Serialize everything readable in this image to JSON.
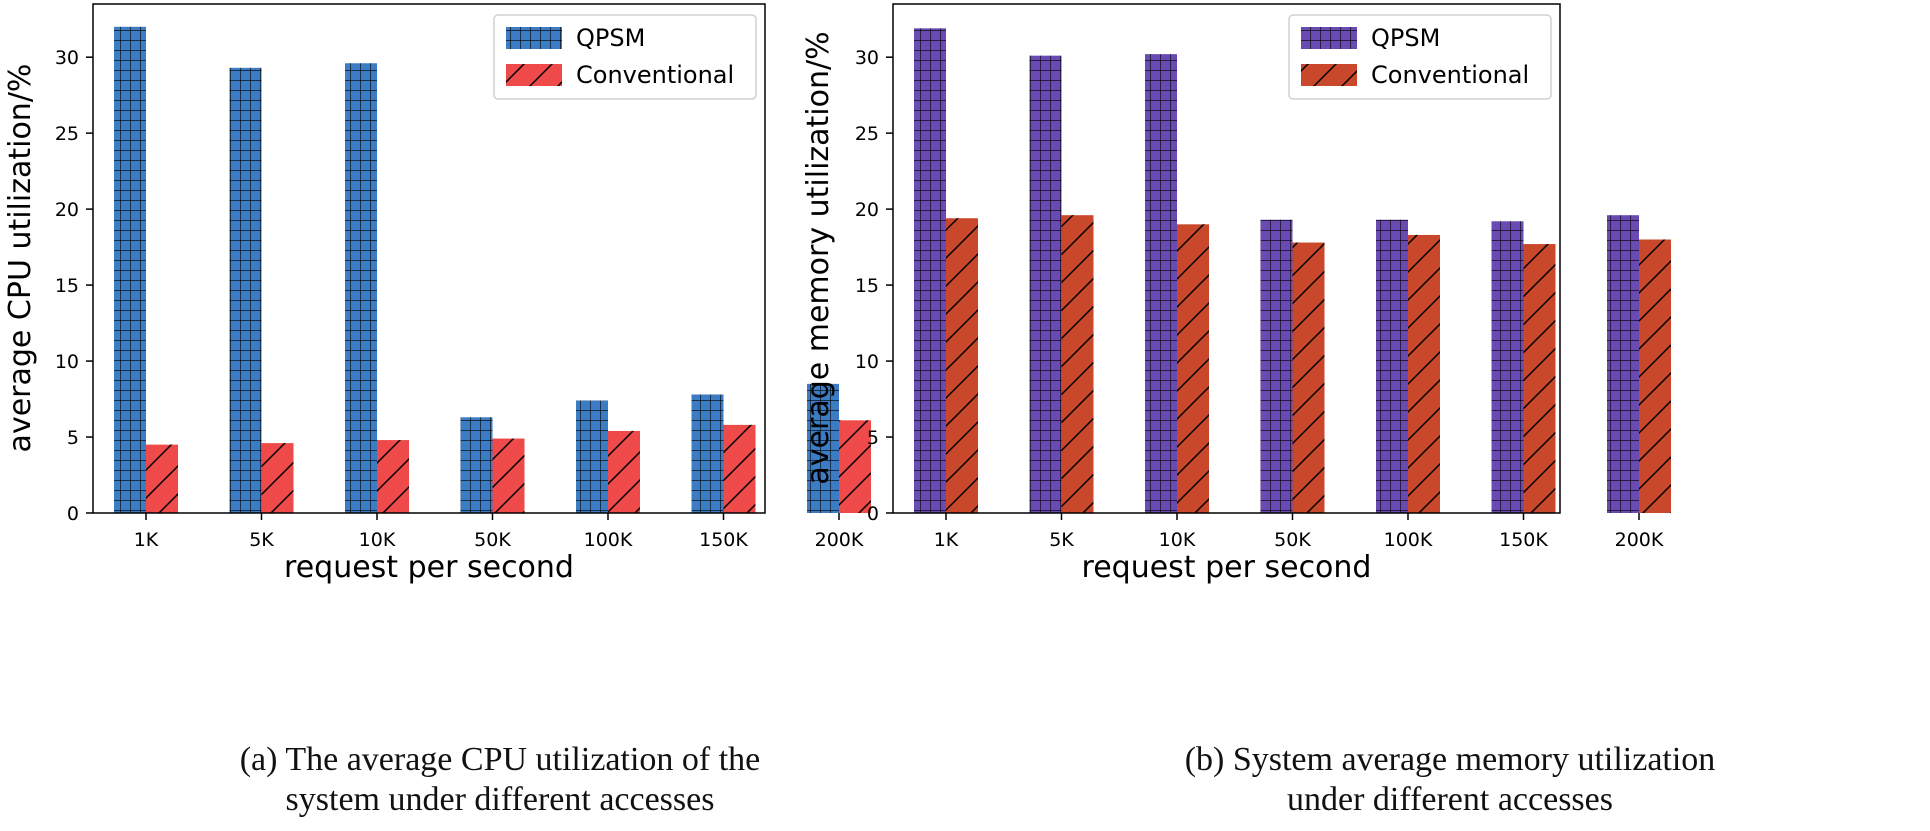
{
  "chart_data": [
    {
      "type": "bar",
      "title": "",
      "xlabel": "request per second",
      "ylabel": "average CPU utilization/%",
      "ylim": [
        0,
        33.5
      ],
      "yticks": [
        "0",
        "5",
        "10",
        "15",
        "20",
        "25",
        "30"
      ],
      "categories": [
        "1K",
        "5K",
        "10K",
        "50K",
        "100K",
        "150K",
        "200K"
      ],
      "series": [
        {
          "name": "QPSM",
          "values": [
            32.0,
            29.3,
            29.6,
            6.3,
            7.4,
            7.8,
            8.5
          ],
          "color": "#3b7cc4",
          "hatch": "grid"
        },
        {
          "name": "Conventional",
          "values": [
            4.5,
            4.6,
            4.8,
            4.9,
            5.4,
            5.8,
            6.1
          ],
          "color": "#ee4a4a",
          "hatch": "diagonal"
        }
      ],
      "legend": "top-right",
      "grid": false
    },
    {
      "type": "bar",
      "title": "",
      "xlabel": "request per second",
      "ylabel": "average memory utilization/%",
      "ylim": [
        0,
        33.5
      ],
      "yticks": [
        "0",
        "5",
        "10",
        "15",
        "20",
        "25",
        "30"
      ],
      "categories": [
        "1K",
        "5K",
        "10K",
        "50K",
        "100K",
        "150K",
        "200K"
      ],
      "series": [
        {
          "name": "QPSM",
          "values": [
            31.9,
            30.1,
            30.2,
            19.3,
            19.3,
            19.2,
            19.6
          ],
          "color": "#6a4bb4",
          "hatch": "grid"
        },
        {
          "name": "Conventional",
          "values": [
            19.4,
            19.6,
            19.0,
            17.8,
            18.3,
            17.7,
            18.0
          ],
          "color": "#c9472a",
          "hatch": "diagonal"
        }
      ],
      "legend": "top-right",
      "grid": false
    }
  ],
  "captions": {
    "a": {
      "line1": "(a) The average CPU utilization of the",
      "line2": "system under different accesses"
    },
    "b": {
      "line1": "(b) System average memory utilization",
      "line2": "under different accesses"
    }
  }
}
